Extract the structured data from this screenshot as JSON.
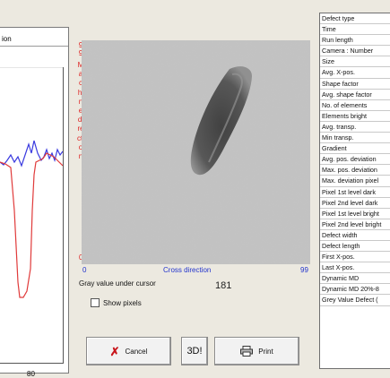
{
  "left_panel": {
    "title_fragment": "ion",
    "axis_label": "80",
    "colors": {
      "blue_series": "#3a3adf",
      "red_series": "#e03a3a"
    }
  },
  "image_view": {
    "vertical_label": "Machine direction",
    "y_top": "99",
    "y_bottom": "0",
    "x_min": "0",
    "x_label": "Cross direction",
    "x_max": "99",
    "axis_color_vertical": "#d22222",
    "axis_color_horizontal": "#2233cc"
  },
  "gray_value": {
    "label": "Gray value under cursor",
    "value": "181"
  },
  "show_pixels": {
    "label": "Show pixels",
    "checked": false
  },
  "buttons": {
    "cancel": "Cancel",
    "three_d": "3D!",
    "print": "Print"
  },
  "parameters": [
    "Defect type",
    "Time",
    "Run length",
    "Camera : Number",
    "Size",
    "Avg. X-pos.",
    "Shape factor",
    "Avg. shape factor",
    "No. of elements",
    "Elements bright",
    "Avg. transp.",
    "Min transp.",
    "Gradient",
    "Avg. pos. deviation",
    "Max. pos. deviation",
    "Max. deviation pixel",
    "Pixel 1st level dark",
    "Pixel 2nd level dark",
    "Pixel 1st level bright",
    "Pixel 2nd level bright",
    "Defect width",
    "Defect length",
    "First X-pos.",
    "Last X-pos.",
    "Dynamic MD",
    "Dynamic MD 20%-8",
    "Grey Value Defect ("
  ]
}
